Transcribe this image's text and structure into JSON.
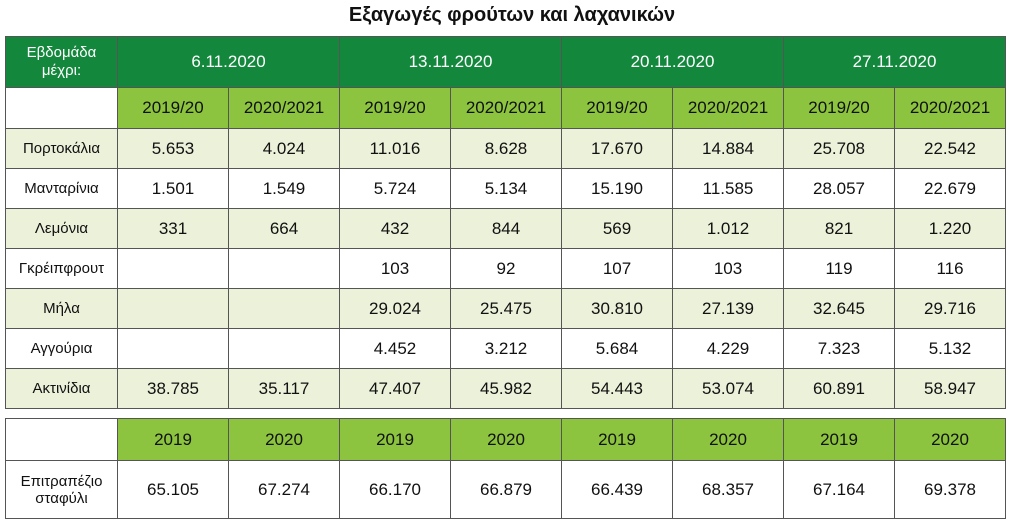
{
  "title": "Εξαγωγές φρούτων και λαχανικών",
  "table": {
    "corner": "Εβδομάδα μέχρι:",
    "weeks": [
      "6.11.2020",
      "13.11.2020",
      "20.11.2020",
      "27.11.2020"
    ],
    "seasons": [
      "2019/20",
      "2020/2021",
      "2019/20",
      "2020/2021",
      "2019/20",
      "2020/2021",
      "2019/20",
      "2020/2021"
    ],
    "rows": [
      [
        "Πορτοκάλια",
        "5.653",
        "4.024",
        "11.016",
        "8.628",
        "17.670",
        "14.884",
        "25.708",
        "22.542"
      ],
      [
        "Μανταρίνια",
        "1.501",
        "1.549",
        "5.724",
        "5.134",
        "15.190",
        "11.585",
        "28.057",
        "22.679"
      ],
      [
        "Λεμόνια",
        "331",
        "664",
        "432",
        "844",
        "569",
        "1.012",
        "821",
        "1.220"
      ],
      [
        "Γκρέιπφρουτ",
        null,
        null,
        "103",
        "92",
        "107",
        "103",
        "119",
        "116"
      ],
      [
        "Μήλα",
        null,
        null,
        "29.024",
        "25.475",
        "30.810",
        "27.139",
        "32.645",
        "29.716"
      ],
      [
        "Αγγούρια",
        null,
        null,
        "4.452",
        "3.212",
        "5.684",
        "4.229",
        "7.323",
        "5.132"
      ],
      [
        "Ακτινίδια",
        "38.785",
        "35.117",
        "47.407",
        "45.982",
        "54.443",
        "53.074",
        "60.891",
        "58.947"
      ]
    ]
  },
  "table2": {
    "years": [
      "2019",
      "2020",
      "2019",
      "2020",
      "2019",
      "2020",
      "2019",
      "2020"
    ],
    "rows": [
      [
        "Επιτραπέζιο σταφύλι",
        "65.105",
        "67.274",
        "66.170",
        "66.879",
        "66.439",
        "68.357",
        "67.164",
        "69.378"
      ]
    ]
  }
}
